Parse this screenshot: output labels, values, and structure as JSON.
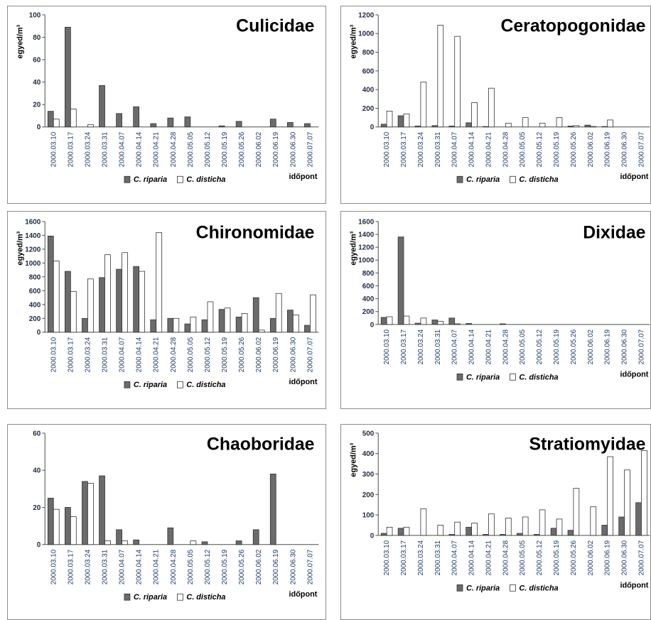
{
  "colors": {
    "riparia": "#6b6b6b",
    "disticha": "#ffffff",
    "bar_stroke": "#333333",
    "axis": "#4d4d4d",
    "tick_text": "#1f3c6e"
  },
  "chart_data": [
    {
      "type": "bar",
      "title": "Culicidae",
      "ylabel": "egyed/m³",
      "xlabel": "időpont",
      "ylim": [
        0,
        100
      ],
      "yticks": [
        0,
        20,
        40,
        60,
        80,
        100
      ],
      "categories": [
        "2000.03.10",
        "2000.03.17",
        "2000.03.24",
        "2000.03.31",
        "2000.04.07",
        "2000.04.14",
        "2000.04.21",
        "2000.04.28",
        "2000.05.05",
        "2000.05.12",
        "2000.05.19",
        "2000.05.26",
        "2000.06.02",
        "2000.06.19",
        "2000.06.30",
        "2000.07.07"
      ],
      "series": [
        {
          "name": "C. riparia",
          "values": [
            14,
            89,
            0,
            37,
            12,
            18,
            3,
            8,
            9,
            0,
            1,
            5,
            0,
            7,
            4,
            3
          ]
        },
        {
          "name": "C. disticha",
          "values": [
            7,
            16,
            2,
            0,
            0,
            0,
            0,
            0,
            0,
            0,
            0,
            0,
            0,
            0,
            0,
            0
          ]
        }
      ],
      "legend_position": "bottom"
    },
    {
      "type": "bar",
      "title": "Ceratopogonidae",
      "ylabel": "egyed/m³",
      "xlabel": "időpont",
      "ylim": [
        0,
        1200
      ],
      "yticks": [
        0,
        200,
        400,
        600,
        800,
        1000,
        1200
      ],
      "categories": [
        "2000.03.10",
        "2000.03.17",
        "2000.03.24",
        "2000.03.31",
        "2000.04.07",
        "2000.04.14",
        "2000.04.21",
        "2000.04.28",
        "2000.05.05",
        "2000.05.12",
        "2000.05.19",
        "2000.05.26",
        "2000.06.02",
        "2000.06.19",
        "2000.06.30",
        "2000.07.07"
      ],
      "series": [
        {
          "name": "C. riparia",
          "values": [
            30,
            120,
            10,
            15,
            10,
            45,
            5,
            0,
            0,
            0,
            0,
            10,
            20,
            5,
            0,
            0
          ]
        },
        {
          "name": "C. disticha",
          "values": [
            170,
            140,
            480,
            1090,
            970,
            260,
            415,
            40,
            100,
            40,
            100,
            15,
            5,
            75,
            0,
            0
          ]
        }
      ],
      "legend_position": "bottom"
    },
    {
      "type": "bar",
      "title": "Chironomidae",
      "ylabel": "egyed/m³",
      "xlabel": "időpont",
      "ylim": [
        0,
        1600
      ],
      "yticks": [
        0,
        200,
        400,
        600,
        800,
        1000,
        1200,
        1400,
        1600
      ],
      "categories": [
        "2000.03.10",
        "2000.03.17",
        "2000.03.24",
        "2000.03.31",
        "2000.04.07",
        "2000.04.14",
        "2000.04.21",
        "2000.04.28",
        "2000.05.05",
        "2000.05.12",
        "2000.05.19",
        "2000.05.26",
        "2000.06.02",
        "2000.06.19",
        "2000.06.30",
        "2000.07.07"
      ],
      "series": [
        {
          "name": "C. riparia",
          "values": [
            1390,
            880,
            200,
            790,
            910,
            950,
            180,
            200,
            120,
            180,
            330,
            220,
            500,
            200,
            320,
            100
          ]
        },
        {
          "name": "C. disticha",
          "values": [
            1030,
            590,
            770,
            1120,
            1150,
            880,
            1440,
            200,
            220,
            440,
            350,
            270,
            30,
            560,
            250,
            540
          ]
        }
      ],
      "legend_position": "bottom"
    },
    {
      "type": "bar",
      "title": "Dixidae",
      "ylabel": "egyed/m³",
      "xlabel": "időpont",
      "ylim": [
        0,
        1600
      ],
      "yticks": [
        0,
        200,
        400,
        600,
        800,
        1000,
        1200,
        1400,
        1600
      ],
      "categories": [
        "2000.03.10",
        "2000.03.17",
        "2000.03.24",
        "2000.03.31",
        "2000.04.07",
        "2000.04.14",
        "2000.04.21",
        "2000.04.28",
        "2000.05.05",
        "2000.05.12",
        "2000.05.19",
        "2000.05.26",
        "2000.06.02",
        "2000.06.19",
        "2000.06.30",
        "2000.07.07"
      ],
      "series": [
        {
          "name": "C. riparia",
          "values": [
            110,
            1360,
            20,
            70,
            100,
            15,
            0,
            10,
            0,
            0,
            0,
            0,
            0,
            0,
            0,
            0
          ]
        },
        {
          "name": "C. disticha",
          "values": [
            120,
            130,
            100,
            50,
            10,
            0,
            0,
            0,
            0,
            0,
            0,
            0,
            0,
            0,
            0,
            0
          ]
        }
      ],
      "legend_position": "bottom"
    },
    {
      "type": "bar",
      "title": "Chaoboridae",
      "ylabel": "",
      "xlabel": "időpont",
      "ylim": [
        0,
        60
      ],
      "yticks": [
        0,
        20,
        40,
        60
      ],
      "categories": [
        "2000.03.10",
        "2000.03.17",
        "2000.03.24",
        "2000.03.31",
        "2000.04.07",
        "2000.04.14",
        "2000.04.21",
        "2000.04.28",
        "2000.05.05",
        "2000.05.12",
        "2000.05.19",
        "2000.05.26",
        "2000.06.02",
        "2000.06.19",
        "2000.06.30",
        "2000.07.07"
      ],
      "series": [
        {
          "name": "C. riparia",
          "values": [
            25,
            20,
            34,
            37,
            8,
            2.5,
            0,
            9,
            0,
            1.5,
            0,
            2,
            8,
            38,
            0,
            0
          ]
        },
        {
          "name": "C. disticha",
          "values": [
            19,
            15,
            33,
            2,
            2,
            0,
            0,
            0,
            2,
            0,
            0,
            0,
            0,
            0,
            0,
            0
          ]
        }
      ],
      "legend_position": "bottom"
    },
    {
      "type": "bar",
      "title": "Stratiomyidae",
      "ylabel": "egyed/m³",
      "xlabel": "időpont",
      "ylim": [
        0,
        500
      ],
      "yticks": [
        0,
        100,
        200,
        300,
        400,
        500
      ],
      "categories": [
        "2000.03.10",
        "2000.03.17",
        "2000.03.24",
        "2000.03.31",
        "2000.04.07",
        "2000.04.14",
        "2000.04.21",
        "2000.04.28",
        "2000.05.05",
        "2000.05.12",
        "2000.05.19",
        "2000.05.26",
        "2000.06.02",
        "2000.06.19",
        "2000.06.30",
        "2000.07.07"
      ],
      "series": [
        {
          "name": "C. riparia",
          "values": [
            10,
            35,
            0,
            0,
            5,
            40,
            5,
            5,
            10,
            5,
            35,
            25,
            0,
            50,
            90,
            160
          ]
        },
        {
          "name": "C. disticha",
          "values": [
            40,
            40,
            130,
            50,
            65,
            60,
            105,
            85,
            90,
            125,
            80,
            230,
            140,
            385,
            320,
            415
          ]
        }
      ],
      "legend_position": "bottom"
    }
  ]
}
